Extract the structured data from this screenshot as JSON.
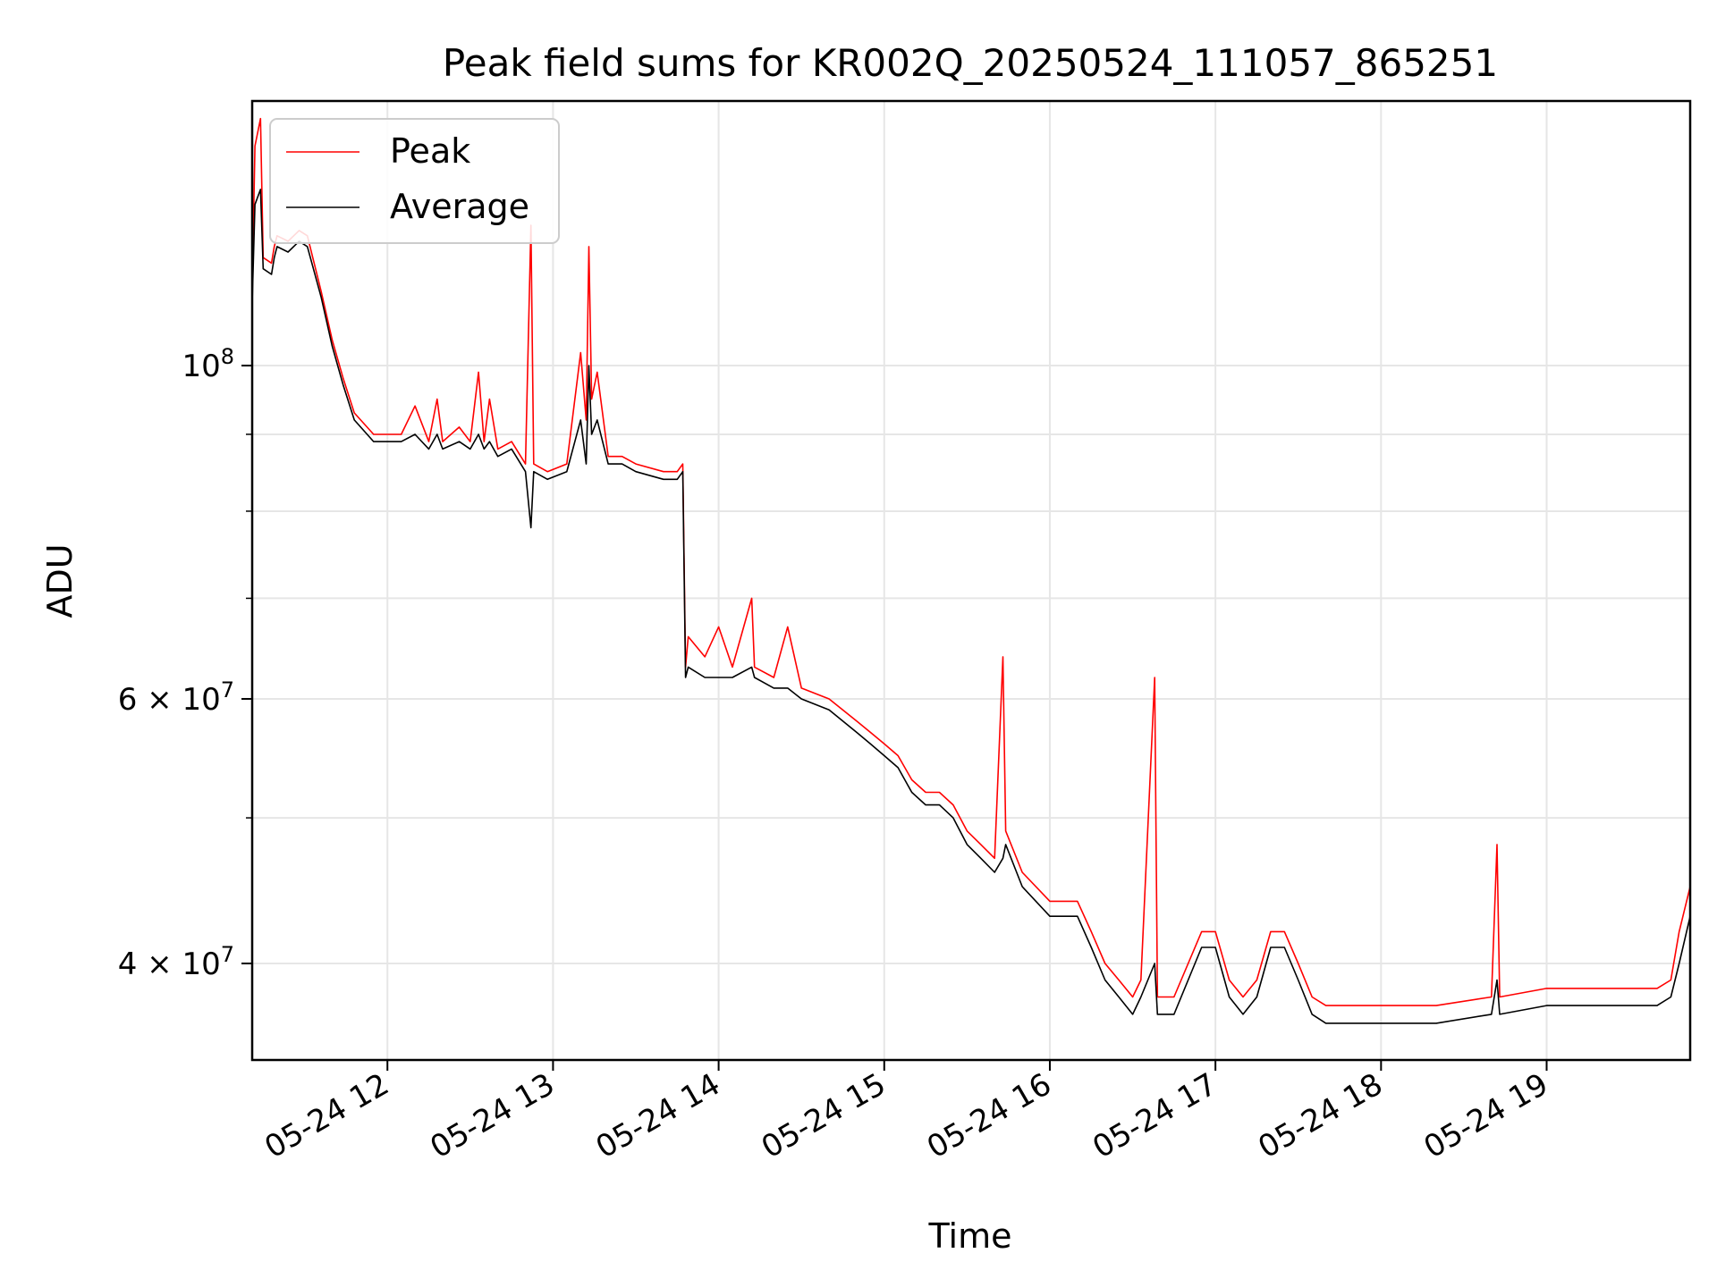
{
  "chart_data": {
    "type": "line",
    "title": "Peak field sums for KR002Q_20250524_111057_865251",
    "xlabel": "Time",
    "ylabel": "ADU",
    "y_scale": "log",
    "x_range": [
      "2025-05-24 11:11",
      "2025-05-24 19:52"
    ],
    "ylim": [
      34500000,
      150000000
    ],
    "grid": true,
    "legend_placement": "top-left",
    "x_ticks": [
      {
        "time": "2025-05-24 12:00",
        "label": "05-24 12"
      },
      {
        "time": "2025-05-24 13:00",
        "label": "05-24 13"
      },
      {
        "time": "2025-05-24 14:00",
        "label": "05-24 14"
      },
      {
        "time": "2025-05-24 15:00",
        "label": "05-24 15"
      },
      {
        "time": "2025-05-24 16:00",
        "label": "05-24 16"
      },
      {
        "time": "2025-05-24 17:00",
        "label": "05-24 17"
      },
      {
        "time": "2025-05-24 18:00",
        "label": "05-24 18"
      },
      {
        "time": "2025-05-24 19:00",
        "label": "05-24 19"
      }
    ],
    "y_ticks": [
      {
        "value": 40000000,
        "mantissa": "4",
        "times": "×",
        "base": "10",
        "exponent": "7"
      },
      {
        "value": 60000000,
        "mantissa": "6",
        "times": "×",
        "base": "10",
        "exponent": "7"
      },
      {
        "value": 100000000,
        "mantissa": "",
        "times": "",
        "base": "10",
        "exponent": "8"
      }
    ],
    "y_minor_ticks": [
      50000000,
      70000000,
      80000000,
      90000000
    ],
    "series": [
      {
        "name": "Peak",
        "color": "#ff0000",
        "points": [
          [
            "2025-05-24 11:11",
            112000000
          ],
          [
            "2025-05-24 11:12",
            140000000
          ],
          [
            "2025-05-24 11:14",
            146000000
          ],
          [
            "2025-05-24 11:15",
            118000000
          ],
          [
            "2025-05-24 11:18",
            117000000
          ],
          [
            "2025-05-24 11:19",
            120000000
          ],
          [
            "2025-05-24 11:20",
            122000000
          ],
          [
            "2025-05-24 11:24",
            121000000
          ],
          [
            "2025-05-24 11:28",
            123000000
          ],
          [
            "2025-05-24 11:31",
            122000000
          ],
          [
            "2025-05-24 11:36",
            112000000
          ],
          [
            "2025-05-24 11:40",
            104000000
          ],
          [
            "2025-05-24 11:44",
            98000000
          ],
          [
            "2025-05-24 11:48",
            93000000
          ],
          [
            "2025-05-24 11:55",
            90000000
          ],
          [
            "2025-05-24 12:05",
            90000000
          ],
          [
            "2025-05-24 12:10",
            94000000
          ],
          [
            "2025-05-24 12:15",
            89000000
          ],
          [
            "2025-05-24 12:18",
            95000000
          ],
          [
            "2025-05-24 12:20",
            89000000
          ],
          [
            "2025-05-24 12:26",
            91000000
          ],
          [
            "2025-05-24 12:30",
            89000000
          ],
          [
            "2025-05-24 12:33",
            99000000
          ],
          [
            "2025-05-24 12:35",
            89000000
          ],
          [
            "2025-05-24 12:37",
            95000000
          ],
          [
            "2025-05-24 12:40",
            88000000
          ],
          [
            "2025-05-24 12:45",
            89000000
          ],
          [
            "2025-05-24 12:50",
            86000000
          ],
          [
            "2025-05-24 12:52",
            124000000
          ],
          [
            "2025-05-24 12:53",
            86000000
          ],
          [
            "2025-05-24 12:58",
            85000000
          ],
          [
            "2025-05-24 13:05",
            86000000
          ],
          [
            "2025-05-24 13:10",
            102000000
          ],
          [
            "2025-05-24 13:12",
            92000000
          ],
          [
            "2025-05-24 13:13",
            120000000
          ],
          [
            "2025-05-24 13:14",
            95000000
          ],
          [
            "2025-05-24 13:16",
            99000000
          ],
          [
            "2025-05-24 13:20",
            87000000
          ],
          [
            "2025-05-24 13:25",
            87000000
          ],
          [
            "2025-05-24 13:30",
            86000000
          ],
          [
            "2025-05-24 13:40",
            85000000
          ],
          [
            "2025-05-24 13:45",
            85000000
          ],
          [
            "2025-05-24 13:47",
            86000000
          ],
          [
            "2025-05-24 13:48",
            63000000
          ],
          [
            "2025-05-24 13:49",
            66000000
          ],
          [
            "2025-05-24 13:55",
            64000000
          ],
          [
            "2025-05-24 14:00",
            67000000
          ],
          [
            "2025-05-24 14:05",
            63000000
          ],
          [
            "2025-05-24 14:12",
            70000000
          ],
          [
            "2025-05-24 14:13",
            63000000
          ],
          [
            "2025-05-24 14:20",
            62000000
          ],
          [
            "2025-05-24 14:25",
            67000000
          ],
          [
            "2025-05-24 14:30",
            61000000
          ],
          [
            "2025-05-24 14:40",
            60000000
          ],
          [
            "2025-05-24 14:50",
            58000000
          ],
          [
            "2025-05-24 14:55",
            57000000
          ],
          [
            "2025-05-24 15:00",
            56000000
          ],
          [
            "2025-05-24 15:05",
            55000000
          ],
          [
            "2025-05-24 15:10",
            53000000
          ],
          [
            "2025-05-24 15:15",
            52000000
          ],
          [
            "2025-05-24 15:20",
            52000000
          ],
          [
            "2025-05-24 15:25",
            51000000
          ],
          [
            "2025-05-24 15:30",
            49000000
          ],
          [
            "2025-05-24 15:35",
            48000000
          ],
          [
            "2025-05-24 15:40",
            47000000
          ],
          [
            "2025-05-24 15:43",
            64000000
          ],
          [
            "2025-05-24 15:44",
            49000000
          ],
          [
            "2025-05-24 15:50",
            46000000
          ],
          [
            "2025-05-24 16:00",
            44000000
          ],
          [
            "2025-05-24 16:10",
            44000000
          ],
          [
            "2025-05-24 16:15",
            42000000
          ],
          [
            "2025-05-24 16:20",
            40000000
          ],
          [
            "2025-05-24 16:25",
            39000000
          ],
          [
            "2025-05-24 16:30",
            38000000
          ],
          [
            "2025-05-24 16:33",
            39000000
          ],
          [
            "2025-05-24 16:38",
            62000000
          ],
          [
            "2025-05-24 16:39",
            38000000
          ],
          [
            "2025-05-24 16:45",
            38000000
          ],
          [
            "2025-05-24 16:55",
            42000000
          ],
          [
            "2025-05-24 17:00",
            42000000
          ],
          [
            "2025-05-24 17:05",
            39000000
          ],
          [
            "2025-05-24 17:10",
            38000000
          ],
          [
            "2025-05-24 17:15",
            39000000
          ],
          [
            "2025-05-24 17:20",
            42000000
          ],
          [
            "2025-05-24 17:25",
            42000000
          ],
          [
            "2025-05-24 17:30",
            40000000
          ],
          [
            "2025-05-24 17:35",
            38000000
          ],
          [
            "2025-05-24 17:40",
            37500000
          ],
          [
            "2025-05-24 17:50",
            37500000
          ],
          [
            "2025-05-24 18:00",
            37500000
          ],
          [
            "2025-05-24 18:20",
            37500000
          ],
          [
            "2025-05-24 18:40",
            38000000
          ],
          [
            "2025-05-24 18:42",
            48000000
          ],
          [
            "2025-05-24 18:43",
            38000000
          ],
          [
            "2025-05-24 19:00",
            38500000
          ],
          [
            "2025-05-24 19:20",
            38500000
          ],
          [
            "2025-05-24 19:40",
            38500000
          ],
          [
            "2025-05-24 19:45",
            39000000
          ],
          [
            "2025-05-24 19:48",
            42000000
          ],
          [
            "2025-05-24 19:52",
            45000000
          ]
        ]
      },
      {
        "name": "Average",
        "color": "#000000",
        "points": [
          [
            "2025-05-24 11:11",
            110000000
          ],
          [
            "2025-05-24 11:12",
            128000000
          ],
          [
            "2025-05-24 11:14",
            131000000
          ],
          [
            "2025-05-24 11:15",
            116000000
          ],
          [
            "2025-05-24 11:18",
            115000000
          ],
          [
            "2025-05-24 11:19",
            118000000
          ],
          [
            "2025-05-24 11:20",
            120000000
          ],
          [
            "2025-05-24 11:24",
            119000000
          ],
          [
            "2025-05-24 11:28",
            121000000
          ],
          [
            "2025-05-24 11:31",
            120000000
          ],
          [
            "2025-05-24 11:36",
            111000000
          ],
          [
            "2025-05-24 11:40",
            103000000
          ],
          [
            "2025-05-24 11:44",
            97000000
          ],
          [
            "2025-05-24 11:48",
            92000000
          ],
          [
            "2025-05-24 11:55",
            89000000
          ],
          [
            "2025-05-24 12:05",
            89000000
          ],
          [
            "2025-05-24 12:10",
            90000000
          ],
          [
            "2025-05-24 12:15",
            88000000
          ],
          [
            "2025-05-24 12:18",
            90000000
          ],
          [
            "2025-05-24 12:20",
            88000000
          ],
          [
            "2025-05-24 12:26",
            89000000
          ],
          [
            "2025-05-24 12:30",
            88000000
          ],
          [
            "2025-05-24 12:33",
            90000000
          ],
          [
            "2025-05-24 12:35",
            88000000
          ],
          [
            "2025-05-24 12:37",
            89000000
          ],
          [
            "2025-05-24 12:40",
            87000000
          ],
          [
            "2025-05-24 12:45",
            88000000
          ],
          [
            "2025-05-24 12:50",
            85000000
          ],
          [
            "2025-05-24 12:52",
            78000000
          ],
          [
            "2025-05-24 12:53",
            85000000
          ],
          [
            "2025-05-24 12:58",
            84000000
          ],
          [
            "2025-05-24 13:05",
            85000000
          ],
          [
            "2025-05-24 13:10",
            92000000
          ],
          [
            "2025-05-24 13:12",
            86000000
          ],
          [
            "2025-05-24 13:13",
            100000000
          ],
          [
            "2025-05-24 13:14",
            90000000
          ],
          [
            "2025-05-24 13:16",
            92000000
          ],
          [
            "2025-05-24 13:20",
            86000000
          ],
          [
            "2025-05-24 13:25",
            86000000
          ],
          [
            "2025-05-24 13:30",
            85000000
          ],
          [
            "2025-05-24 13:40",
            84000000
          ],
          [
            "2025-05-24 13:45",
            84000000
          ],
          [
            "2025-05-24 13:47",
            85000000
          ],
          [
            "2025-05-24 13:48",
            62000000
          ],
          [
            "2025-05-24 13:49",
            63000000
          ],
          [
            "2025-05-24 13:55",
            62000000
          ],
          [
            "2025-05-24 14:00",
            62000000
          ],
          [
            "2025-05-24 14:05",
            62000000
          ],
          [
            "2025-05-24 14:12",
            63000000
          ],
          [
            "2025-05-24 14:13",
            62000000
          ],
          [
            "2025-05-24 14:20",
            61000000
          ],
          [
            "2025-05-24 14:25",
            61000000
          ],
          [
            "2025-05-24 14:30",
            60000000
          ],
          [
            "2025-05-24 14:40",
            59000000
          ],
          [
            "2025-05-24 14:50",
            57000000
          ],
          [
            "2025-05-24 14:55",
            56000000
          ],
          [
            "2025-05-24 15:00",
            55000000
          ],
          [
            "2025-05-24 15:05",
            54000000
          ],
          [
            "2025-05-24 15:10",
            52000000
          ],
          [
            "2025-05-24 15:15",
            51000000
          ],
          [
            "2025-05-24 15:20",
            51000000
          ],
          [
            "2025-05-24 15:25",
            50000000
          ],
          [
            "2025-05-24 15:30",
            48000000
          ],
          [
            "2025-05-24 15:35",
            47000000
          ],
          [
            "2025-05-24 15:40",
            46000000
          ],
          [
            "2025-05-24 15:43",
            47000000
          ],
          [
            "2025-05-24 15:44",
            48000000
          ],
          [
            "2025-05-24 15:50",
            45000000
          ],
          [
            "2025-05-24 16:00",
            43000000
          ],
          [
            "2025-05-24 16:10",
            43000000
          ],
          [
            "2025-05-24 16:15",
            41000000
          ],
          [
            "2025-05-24 16:20",
            39000000
          ],
          [
            "2025-05-24 16:25",
            38000000
          ],
          [
            "2025-05-24 16:30",
            37000000
          ],
          [
            "2025-05-24 16:33",
            38000000
          ],
          [
            "2025-05-24 16:38",
            40000000
          ],
          [
            "2025-05-24 16:39",
            37000000
          ],
          [
            "2025-05-24 16:45",
            37000000
          ],
          [
            "2025-05-24 16:55",
            41000000
          ],
          [
            "2025-05-24 17:00",
            41000000
          ],
          [
            "2025-05-24 17:05",
            38000000
          ],
          [
            "2025-05-24 17:10",
            37000000
          ],
          [
            "2025-05-24 17:15",
            38000000
          ],
          [
            "2025-05-24 17:20",
            41000000
          ],
          [
            "2025-05-24 17:25",
            41000000
          ],
          [
            "2025-05-24 17:30",
            39000000
          ],
          [
            "2025-05-24 17:35",
            37000000
          ],
          [
            "2025-05-24 17:40",
            36500000
          ],
          [
            "2025-05-24 17:50",
            36500000
          ],
          [
            "2025-05-24 18:00",
            36500000
          ],
          [
            "2025-05-24 18:20",
            36500000
          ],
          [
            "2025-05-24 18:40",
            37000000
          ],
          [
            "2025-05-24 18:42",
            39000000
          ],
          [
            "2025-05-24 18:43",
            37000000
          ],
          [
            "2025-05-24 19:00",
            37500000
          ],
          [
            "2025-05-24 19:20",
            37500000
          ],
          [
            "2025-05-24 19:40",
            37500000
          ],
          [
            "2025-05-24 19:45",
            38000000
          ],
          [
            "2025-05-24 19:48",
            40000000
          ],
          [
            "2025-05-24 19:52",
            43000000
          ]
        ]
      }
    ]
  }
}
